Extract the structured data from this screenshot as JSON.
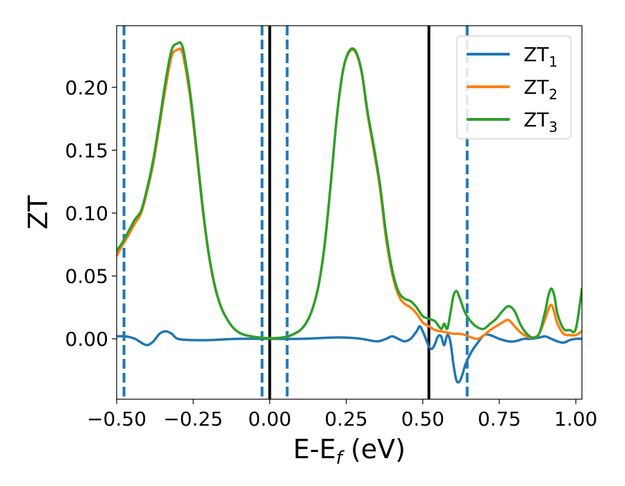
{
  "chart_data": {
    "type": "line",
    "xlabel": "E-E",
    "xlabel_sub": "f",
    "xlabel_unit": " (eV)",
    "ylabel": "ZT",
    "xlim": [
      -0.5,
      1.02
    ],
    "ylim": [
      -0.048,
      0.249
    ],
    "xticks": [
      -0.5,
      -0.25,
      0.0,
      0.25,
      0.5,
      0.75,
      1.0
    ],
    "xtick_labels": [
      "−0.50",
      "−0.25",
      "0.00",
      "0.25",
      "0.50",
      "0.75",
      "1.00"
    ],
    "yticks": [
      0.0,
      0.05,
      0.1,
      0.15,
      0.2
    ],
    "ytick_labels": [
      "0.00",
      "0.05",
      "0.10",
      "0.15",
      "0.20"
    ],
    "grid": false,
    "legend_position": "top-right",
    "vlines_solid": [
      0.0,
      0.52
    ],
    "vlines_dashed": [
      -0.476,
      -0.025,
      0.057,
      0.645
    ],
    "vline_solid_color": "#000000",
    "vline_dashed_color": "#1f77b4",
    "series": [
      {
        "name": "ZT",
        "name_sub": "1",
        "color": "#1f77b4",
        "x": [
          -0.5,
          -0.47,
          -0.44,
          -0.42,
          -0.4,
          -0.38,
          -0.36,
          -0.34,
          -0.32,
          -0.3,
          -0.25,
          -0.2,
          -0.1,
          0.0,
          0.1,
          0.2,
          0.25,
          0.3,
          0.35,
          0.38,
          0.4,
          0.42,
          0.44,
          0.46,
          0.48,
          0.49,
          0.5,
          0.51,
          0.52,
          0.53,
          0.54,
          0.55,
          0.56,
          0.57,
          0.58,
          0.59,
          0.6,
          0.61,
          0.62,
          0.63,
          0.64,
          0.66,
          0.68,
          0.7,
          0.72,
          0.75,
          0.78,
          0.8,
          0.83,
          0.85,
          0.88,
          0.9,
          0.92,
          0.94,
          0.96,
          0.98,
          1.0,
          1.02
        ],
        "y": [
          0.002,
          0.002,
          0.0,
          -0.003,
          -0.005,
          -0.002,
          0.004,
          0.006,
          0.004,
          0.0,
          -0.001,
          -0.001,
          0.0,
          0.0,
          0.0,
          0.001,
          0.001,
          0.0,
          -0.002,
          0.0,
          0.002,
          0.0,
          -0.002,
          0.0,
          0.006,
          0.01,
          0.006,
          0.0,
          -0.006,
          -0.008,
          -0.004,
          0.002,
          0.002,
          -0.005,
          0.003,
          -0.002,
          -0.02,
          -0.033,
          -0.034,
          -0.028,
          -0.02,
          -0.01,
          -0.003,
          0.003,
          0.003,
          0.0,
          -0.002,
          -0.002,
          0.0,
          0.0,
          0.001,
          0.002,
          0.0,
          -0.002,
          -0.003,
          -0.001,
          0.0,
          0.0
        ]
      },
      {
        "name": "ZT",
        "name_sub": "2",
        "color": "#ff7f0e",
        "x": [
          -0.5,
          -0.48,
          -0.46,
          -0.44,
          -0.42,
          -0.4,
          -0.38,
          -0.36,
          -0.34,
          -0.32,
          -0.3,
          -0.29,
          -0.28,
          -0.26,
          -0.24,
          -0.22,
          -0.2,
          -0.18,
          -0.16,
          -0.14,
          -0.12,
          -0.1,
          -0.08,
          -0.06,
          -0.04,
          -0.02,
          0.0,
          0.02,
          0.04,
          0.06,
          0.08,
          0.1,
          0.12,
          0.14,
          0.16,
          0.18,
          0.2,
          0.22,
          0.24,
          0.26,
          0.28,
          0.3,
          0.32,
          0.34,
          0.36,
          0.38,
          0.4,
          0.42,
          0.44,
          0.46,
          0.48,
          0.5,
          0.52,
          0.54,
          0.56,
          0.58,
          0.6,
          0.62,
          0.64,
          0.66,
          0.68,
          0.7,
          0.72,
          0.74,
          0.76,
          0.78,
          0.8,
          0.82,
          0.84,
          0.86,
          0.88,
          0.9,
          0.92,
          0.94,
          0.96,
          0.98,
          1.0,
          1.02
        ],
        "y": [
          0.066,
          0.075,
          0.083,
          0.092,
          0.1,
          0.118,
          0.14,
          0.17,
          0.2,
          0.225,
          0.23,
          0.23,
          0.222,
          0.192,
          0.15,
          0.105,
          0.068,
          0.042,
          0.026,
          0.016,
          0.009,
          0.005,
          0.003,
          0.002,
          0.0012,
          0.0007,
          0.0005,
          0.0006,
          0.001,
          0.002,
          0.004,
          0.007,
          0.013,
          0.024,
          0.043,
          0.076,
          0.125,
          0.178,
          0.214,
          0.228,
          0.228,
          0.212,
          0.178,
          0.15,
          0.12,
          0.08,
          0.052,
          0.035,
          0.028,
          0.025,
          0.02,
          0.013,
          0.01,
          0.007,
          0.006,
          0.005,
          0.004,
          0.004,
          0.003,
          0.001,
          0.0,
          0.003,
          0.007,
          0.01,
          0.013,
          0.015,
          0.01,
          0.005,
          0.002,
          0.001,
          0.004,
          0.016,
          0.027,
          0.012,
          0.004,
          0.003,
          0.003,
          0.006
        ]
      },
      {
        "name": "ZT",
        "name_sub": "3",
        "color": "#2ca02c",
        "x": [
          -0.5,
          -0.48,
          -0.46,
          -0.44,
          -0.42,
          -0.4,
          -0.38,
          -0.36,
          -0.34,
          -0.32,
          -0.3,
          -0.29,
          -0.28,
          -0.26,
          -0.24,
          -0.22,
          -0.2,
          -0.18,
          -0.16,
          -0.14,
          -0.12,
          -0.1,
          -0.08,
          -0.06,
          -0.04,
          -0.02,
          0.0,
          0.02,
          0.04,
          0.06,
          0.08,
          0.1,
          0.12,
          0.14,
          0.16,
          0.18,
          0.2,
          0.22,
          0.24,
          0.26,
          0.28,
          0.3,
          0.32,
          0.34,
          0.36,
          0.38,
          0.4,
          0.42,
          0.44,
          0.46,
          0.48,
          0.5,
          0.52,
          0.54,
          0.56,
          0.57,
          0.58,
          0.59,
          0.6,
          0.61,
          0.62,
          0.63,
          0.64,
          0.66,
          0.68,
          0.7,
          0.72,
          0.74,
          0.76,
          0.78,
          0.8,
          0.82,
          0.84,
          0.86,
          0.88,
          0.9,
          0.91,
          0.92,
          0.93,
          0.94,
          0.96,
          0.98,
          1.0,
          1.02
        ],
        "y": [
          0.07,
          0.077,
          0.086,
          0.095,
          0.102,
          0.12,
          0.143,
          0.173,
          0.205,
          0.23,
          0.235,
          0.235,
          0.227,
          0.196,
          0.153,
          0.107,
          0.069,
          0.043,
          0.026,
          0.016,
          0.009,
          0.005,
          0.003,
          0.002,
          0.0012,
          0.0007,
          0.0005,
          0.0006,
          0.001,
          0.002,
          0.004,
          0.007,
          0.013,
          0.024,
          0.043,
          0.076,
          0.125,
          0.178,
          0.214,
          0.229,
          0.229,
          0.213,
          0.18,
          0.153,
          0.123,
          0.084,
          0.055,
          0.038,
          0.032,
          0.03,
          0.025,
          0.018,
          0.016,
          0.014,
          0.008,
          0.012,
          0.008,
          0.02,
          0.034,
          0.038,
          0.033,
          0.026,
          0.02,
          0.013,
          0.009,
          0.008,
          0.012,
          0.016,
          0.022,
          0.026,
          0.022,
          0.011,
          0.004,
          0.001,
          0.004,
          0.022,
          0.034,
          0.04,
          0.034,
          0.02,
          0.008,
          0.007,
          0.008,
          0.04
        ]
      }
    ]
  }
}
